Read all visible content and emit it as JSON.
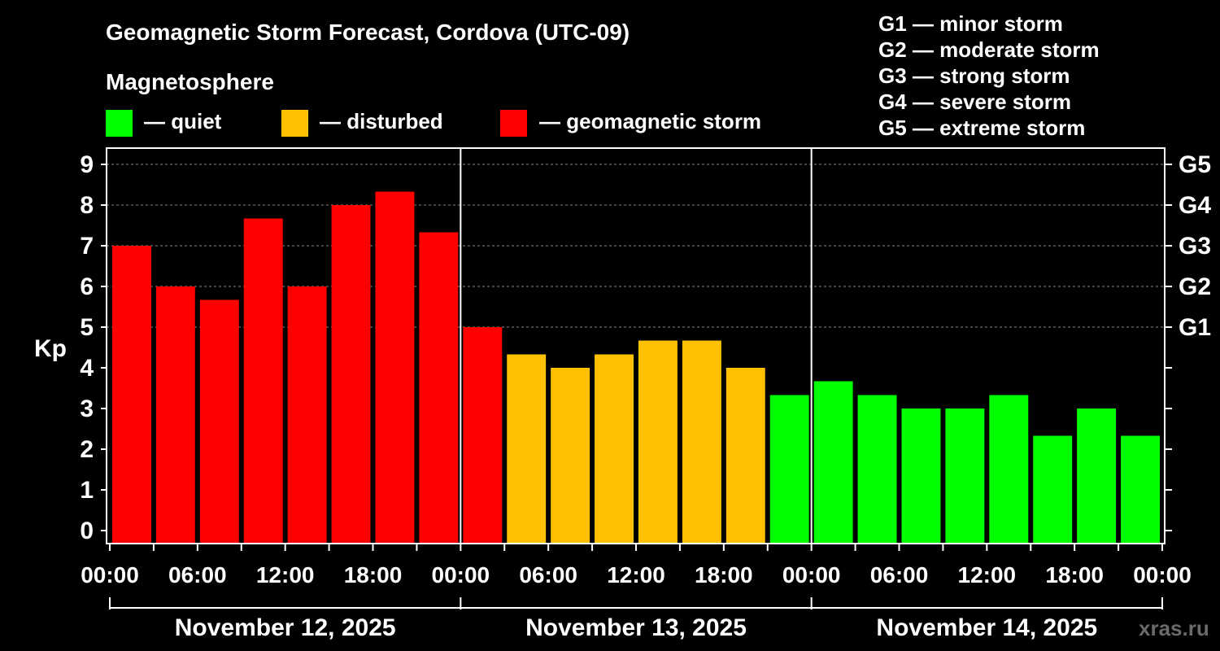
{
  "title": "Geomagnetic Storm Forecast, Cordova (UTC-09)",
  "legend": {
    "heading": "Magnetosphere",
    "items": [
      {
        "label": "— quiet",
        "color": "#00ff00"
      },
      {
        "label": "— disturbed",
        "color": "#ffc000"
      },
      {
        "label": "— geomagnetic storm",
        "color": "#ff0000"
      }
    ]
  },
  "storm_scale": [
    "G1 — minor storm",
    "G2 — moderate storm",
    "G3 — strong storm",
    "G4 — severe storm",
    "G5 — extreme storm"
  ],
  "watermark": "xras.ru",
  "colors": {
    "quiet": "#00ff00",
    "disturbed": "#ffc000",
    "storm": "#ff0000",
    "grid": "#888888"
  },
  "chart_data": {
    "type": "bar",
    "ylabel": "Kp",
    "ylim": [
      0,
      9
    ],
    "yticks": [
      "0",
      "1",
      "2",
      "3",
      "4",
      "5",
      "6",
      "7",
      "8",
      "9"
    ],
    "right_ticks": [
      {
        "value": 5,
        "label": "G1"
      },
      {
        "value": 6,
        "label": "G2"
      },
      {
        "value": 7,
        "label": "G3"
      },
      {
        "value": 8,
        "label": "G4"
      },
      {
        "value": 9,
        "label": "G5"
      }
    ],
    "grid": "dashed horizontal at Kp 5-9",
    "xticks": [
      "00:00",
      "06:00",
      "12:00",
      "18:00",
      "00:00",
      "06:00",
      "12:00",
      "18:00",
      "00:00",
      "06:00",
      "12:00",
      "18:00",
      "00:00"
    ],
    "days": [
      "November 12, 2025",
      "November 13, 2025",
      "November 14, 2025"
    ],
    "values": [
      7.0,
      6.0,
      5.67,
      7.67,
      6.0,
      8.0,
      8.33,
      7.33,
      5.0,
      4.33,
      4.0,
      4.33,
      4.67,
      4.67,
      4.0,
      3.33,
      3.67,
      3.33,
      3.0,
      3.0,
      3.33,
      2.33,
      3.0,
      2.33
    ],
    "levels": [
      "storm",
      "storm",
      "storm",
      "storm",
      "storm",
      "storm",
      "storm",
      "storm",
      "storm",
      "disturbed",
      "disturbed",
      "disturbed",
      "disturbed",
      "disturbed",
      "disturbed",
      "quiet",
      "quiet",
      "quiet",
      "quiet",
      "quiet",
      "quiet",
      "quiet",
      "quiet",
      "quiet"
    ]
  }
}
